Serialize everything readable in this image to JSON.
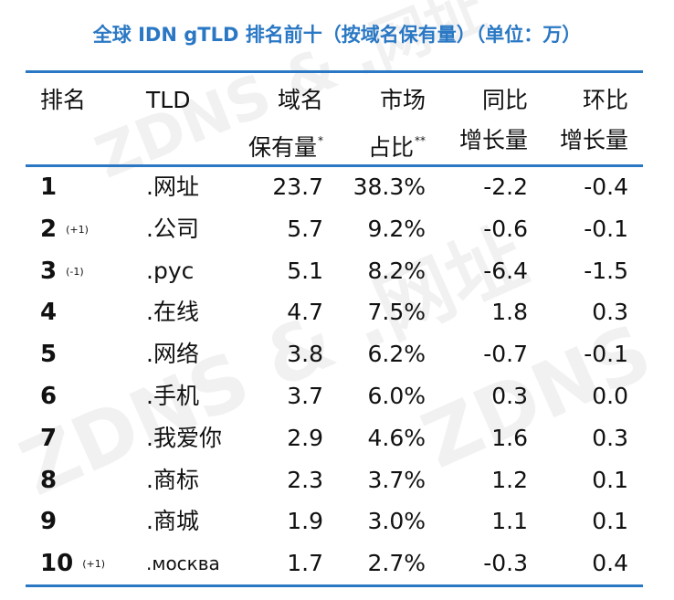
{
  "title": "全球 IDN gTLD 排名前十（按域名保有量）（单位：万）",
  "watermark": "ZDNS & .网址",
  "accent_color": "#2a78c4",
  "headers": {
    "rank": "排名",
    "tld": "TLD",
    "registrations_l1": "域名",
    "registrations_l2": "保有量",
    "registrations_mark": "*",
    "share_l1": "市场",
    "share_l2": "占比",
    "share_mark": "**",
    "yoy_l1": "同比",
    "yoy_l2": "增长量",
    "qoq_l1": "环比",
    "qoq_l2": "增长量"
  },
  "rows": [
    {
      "rank": "1",
      "change": "",
      "tld": ".网址",
      "registrations": "23.7",
      "share": "38.3%",
      "yoy": "-2.2",
      "qoq": "-0.4"
    },
    {
      "rank": "2",
      "change": "(+1)",
      "tld": ".公司",
      "registrations": "5.7",
      "share": "9.2%",
      "yoy": "-0.6",
      "qoq": "-0.1"
    },
    {
      "rank": "3",
      "change": "(-1)",
      "tld": ".рус",
      "registrations": "5.1",
      "share": "8.2%",
      "yoy": "-6.4",
      "qoq": "-1.5"
    },
    {
      "rank": "4",
      "change": "",
      "tld": ".在线",
      "registrations": "4.7",
      "share": "7.5%",
      "yoy": "1.8",
      "qoq": "0.3"
    },
    {
      "rank": "5",
      "change": "",
      "tld": ".网络",
      "registrations": "3.8",
      "share": "6.2%",
      "yoy": "-0.7",
      "qoq": "-0.1"
    },
    {
      "rank": "6",
      "change": "",
      "tld": ".手机",
      "registrations": "3.7",
      "share": "6.0%",
      "yoy": "0.3",
      "qoq": "0.0"
    },
    {
      "rank": "7",
      "change": "",
      "tld": ".我爱你",
      "registrations": "2.9",
      "share": "4.6%",
      "yoy": "1.6",
      "qoq": "0.3"
    },
    {
      "rank": "8",
      "change": "",
      "tld": ".商标",
      "registrations": "2.3",
      "share": "3.7%",
      "yoy": "1.2",
      "qoq": "0.1"
    },
    {
      "rank": "9",
      "change": "",
      "tld": ".商城",
      "registrations": "1.9",
      "share": "3.0%",
      "yoy": "1.1",
      "qoq": "0.1"
    },
    {
      "rank": "10",
      "change": "(+1)",
      "tld": ".москва",
      "registrations": "1.7",
      "share": "2.7%",
      "yoy": "-0.3",
      "qoq": "0.4"
    }
  ]
}
